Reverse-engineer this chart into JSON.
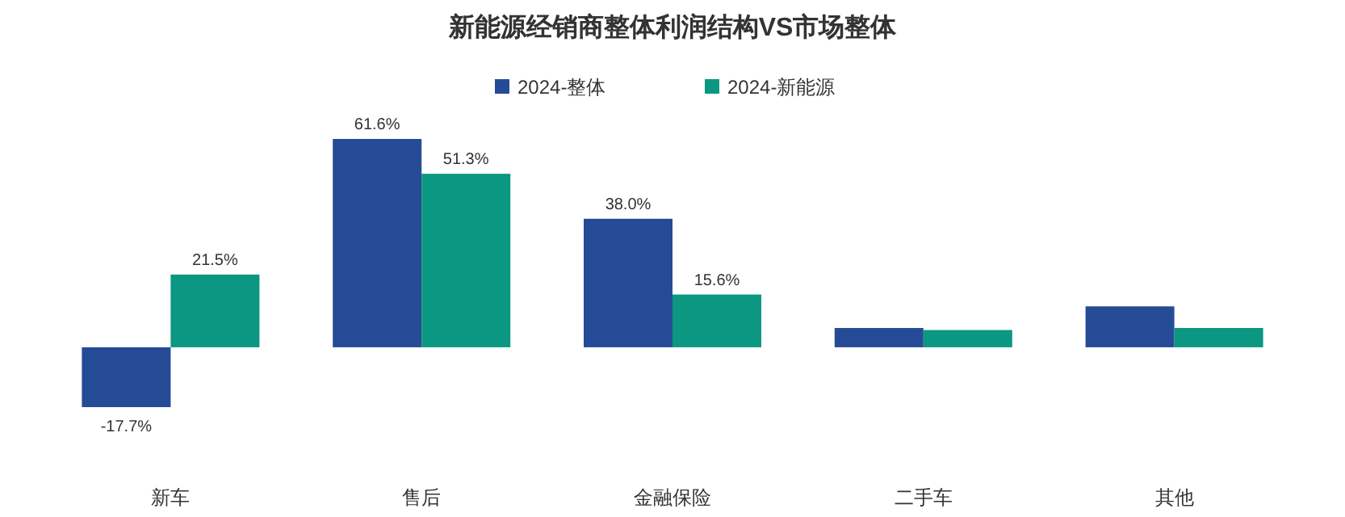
{
  "chart_data": {
    "type": "bar",
    "title": "新能源经销商整体利润结构VS市场整体",
    "categories": [
      "新车",
      "售后",
      "金融保险",
      "二手车",
      "其他"
    ],
    "legend": "top",
    "series": [
      {
        "name": "2024-整体",
        "color": "#264b96",
        "values": [
          -17.7,
          61.6,
          38.0,
          5.7,
          12.1
        ],
        "value_labels": [
          "-17.7%",
          "61.6%",
          "38.0%",
          null,
          null
        ]
      },
      {
        "name": "2024-新能源",
        "color": "#0b9781",
        "values": [
          21.5,
          51.3,
          15.6,
          5.1,
          5.7
        ],
        "value_labels": [
          "21.5%",
          "51.3%",
          "15.6%",
          null,
          null
        ]
      }
    ]
  }
}
